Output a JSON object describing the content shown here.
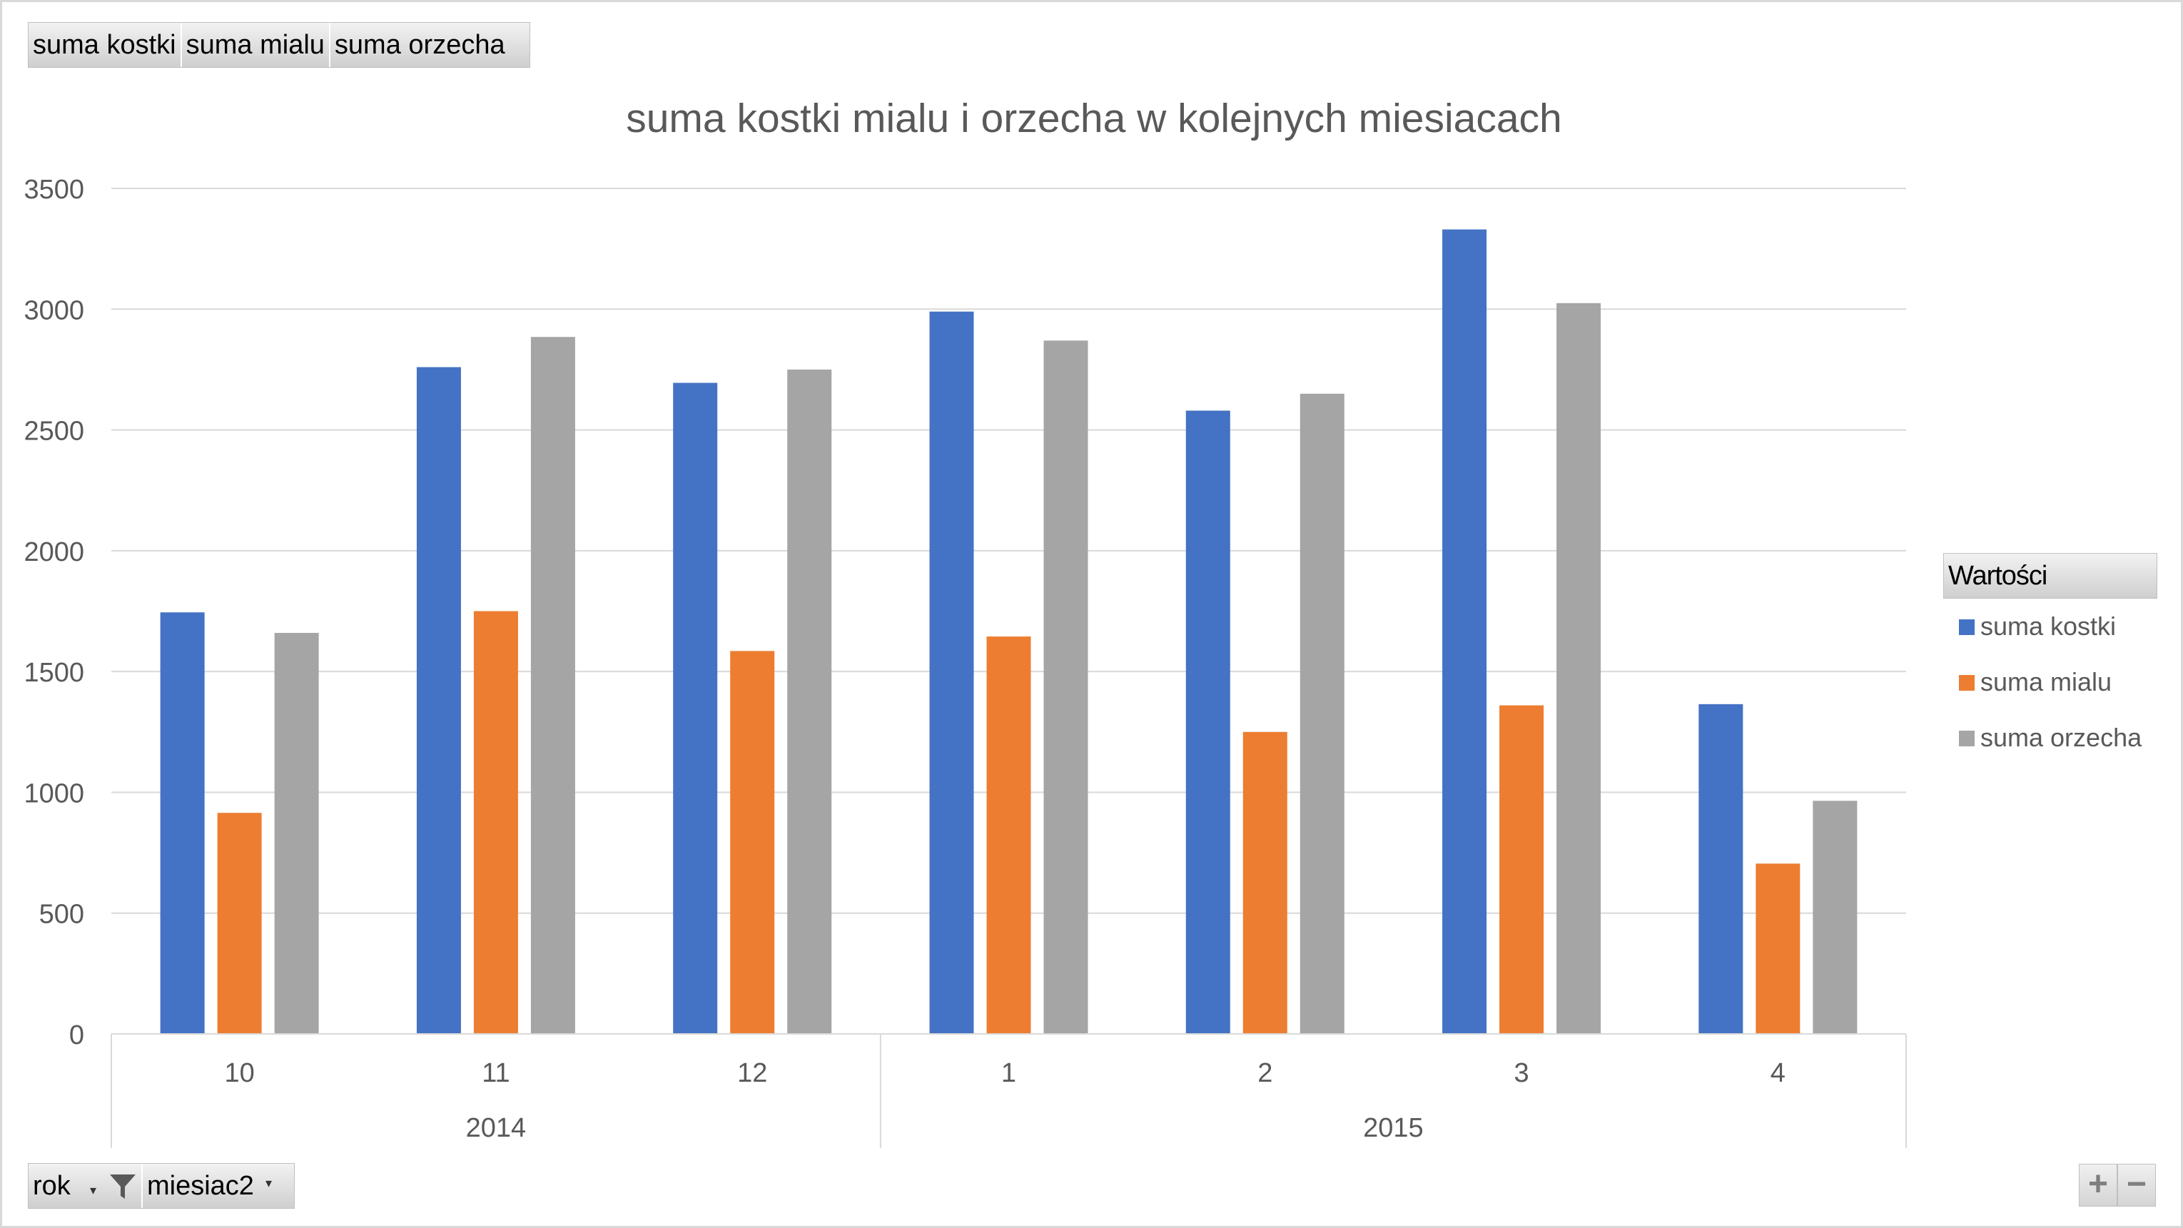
{
  "value_fields": {
    "items": [
      {
        "label": "suma kostki"
      },
      {
        "label": "suma mialu"
      },
      {
        "label": "suma orzecha"
      }
    ]
  },
  "axis_fields": {
    "rok_label": "rok",
    "miesiac_label": "miesiac2",
    "rok_filtered_icon": "filter-icon",
    "dropdown_icon": "chevron-down-icon"
  },
  "zoom": {
    "plus_label": "+",
    "minus_label": "−"
  },
  "legend": {
    "title": "Wartości"
  },
  "colors": {
    "suma_kostki": "#4472c4",
    "suma_mialu": "#ed7d31",
    "suma_orzecha": "#a5a5a5",
    "gridline": "#d9d9d9",
    "axis_text": "#595959"
  },
  "chart_data": {
    "type": "bar",
    "title": "suma kostki mialu i orzecha w kolejnych miesiacach",
    "xlabel": "",
    "ylabel": "",
    "ylim": [
      0,
      3500
    ],
    "yticks": [
      0,
      500,
      1000,
      1500,
      2000,
      2500,
      3000,
      3500
    ],
    "grid": true,
    "legend_position": "right",
    "categories": [
      "10",
      "11",
      "12",
      "1",
      "2",
      "3",
      "4"
    ],
    "category_groups": [
      {
        "label": "2014",
        "count": 3
      },
      {
        "label": "2015",
        "count": 4
      }
    ],
    "series": [
      {
        "name": "suma kostki",
        "color": "#4472c4",
        "values": [
          1745,
          2760,
          2695,
          2990,
          2580,
          3330,
          1365
        ]
      },
      {
        "name": "suma mialu",
        "color": "#ed7d31",
        "values": [
          915,
          1750,
          1585,
          1645,
          1250,
          1360,
          705
        ]
      },
      {
        "name": "suma orzecha",
        "color": "#a5a5a5",
        "values": [
          1660,
          2885,
          2750,
          2870,
          2650,
          3025,
          965
        ]
      }
    ]
  }
}
